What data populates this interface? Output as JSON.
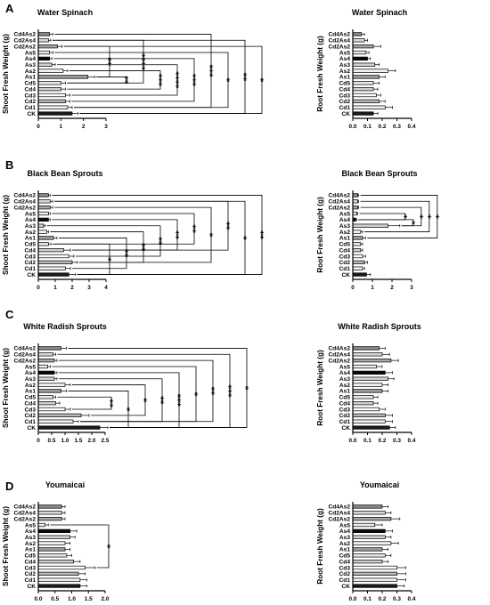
{
  "chart_data": [
    {
      "panel": "A",
      "side": "left",
      "type": "bar",
      "title": "Water Spinach",
      "ylabel": "Shoot Fresh Weight (g)",
      "categories": [
        "Cd4As2",
        "Cd2As4",
        "Cd2As2",
        "As5",
        "As4",
        "As3",
        "As2",
        "As1",
        "Cd5",
        "Cd4",
        "Cd3",
        "Cd2",
        "Cd1",
        "CK"
      ],
      "values": [
        0.5,
        0.45,
        0.85,
        0.5,
        0.5,
        0.6,
        1.1,
        2.2,
        1.0,
        1.0,
        1.2,
        1.2,
        1.3,
        1.5
      ],
      "errors": [
        0.15,
        0.1,
        0.2,
        0.15,
        0.1,
        0.15,
        0.2,
        0.3,
        0.2,
        0.2,
        0.2,
        0.2,
        0.2,
        0.25
      ],
      "xlim": [
        0,
        3
      ],
      "xticks": [
        "0",
        "1",
        "2",
        "3"
      ],
      "significance": [
        {
          "from": "Cd2As2",
          "to": "As1",
          "label": "**"
        },
        {
          "from": "As1",
          "to": "Cd5",
          "label": "**"
        },
        {
          "from": "Cd2As4",
          "to": "Cd5",
          "label": "****"
        },
        {
          "from": "As2",
          "to": "Cd4",
          "label": "***"
        },
        {
          "from": "As3",
          "to": "Cd3",
          "label": "****"
        },
        {
          "from": "As4",
          "to": "Cd2",
          "label": "***"
        },
        {
          "from": "Cd4As2",
          "to": "Cd1",
          "label": "***"
        },
        {
          "from": "As5",
          "to": "Cd1",
          "label": "*"
        },
        {
          "from": "Cd2As4",
          "to": "CK",
          "label": "**"
        },
        {
          "from": "Cd2As2",
          "to": "CK",
          "label": "*"
        }
      ]
    },
    {
      "panel": "A",
      "side": "right",
      "type": "bar",
      "title": "Water Spinach",
      "ylabel": "Root Fresh Weight (g)",
      "categories": [
        "Cd4As2",
        "Cd2As4",
        "Cd2As2",
        "As5",
        "As4",
        "As3",
        "As2",
        "As1",
        "Cd5",
        "Cd4",
        "Cd3",
        "Cd2",
        "Cd1",
        "CK"
      ],
      "values": [
        0.06,
        0.08,
        0.14,
        0.09,
        0.1,
        0.15,
        0.24,
        0.18,
        0.14,
        0.14,
        0.16,
        0.18,
        0.22,
        0.14
      ],
      "errors": [
        0.02,
        0.02,
        0.05,
        0.02,
        0.02,
        0.03,
        0.05,
        0.04,
        0.04,
        0.03,
        0.03,
        0.04,
        0.05,
        0.03
      ],
      "xlim": [
        0,
        0.4
      ],
      "xticks": [
        "0.0",
        "0.1",
        "0.2",
        "0.3",
        "0.4"
      ],
      "significance": []
    },
    {
      "panel": "B",
      "side": "left",
      "type": "bar",
      "title": "Black Bean Sprouts",
      "ylabel": "Shoot Fresh Weight (g)",
      "categories": [
        "Cd4As2",
        "Cd2As4",
        "Cd2As2",
        "As5",
        "As4",
        "As3",
        "As2",
        "As1",
        "Cd5",
        "Cd4",
        "Cd3",
        "Cd2",
        "Cd1",
        "CK"
      ],
      "values": [
        0.6,
        0.7,
        0.7,
        0.6,
        0.6,
        0.3,
        0.5,
        0.9,
        0.6,
        1.5,
        1.8,
        2.0,
        1.6,
        1.8
      ],
      "errors": [
        0.1,
        0.15,
        0.15,
        0.1,
        0.1,
        0.1,
        0.1,
        0.2,
        0.15,
        0.4,
        0.3,
        0.3,
        0.3,
        0.4
      ],
      "xlim": [
        0,
        4
      ],
      "xticks": [
        "0",
        "1",
        "2",
        "3",
        "4"
      ],
      "significance": [
        {
          "from": "Cd5",
          "to": "CK",
          "label": "*"
        },
        {
          "from": "As1",
          "to": "Cd1",
          "label": "**"
        },
        {
          "from": "As2",
          "to": "Cd2",
          "label": "**"
        },
        {
          "from": "As3",
          "to": "Cd3",
          "label": "**"
        },
        {
          "from": "As4",
          "to": "Cd4",
          "label": "**"
        },
        {
          "from": "As5",
          "to": "Cd5",
          "label": "**"
        },
        {
          "from": "Cd2As2",
          "to": "Cd2",
          "label": "*"
        },
        {
          "from": "Cd2As4",
          "to": "Cd4",
          "label": "**"
        },
        {
          "from": "Cd2As4",
          "to": "CK",
          "label": "*"
        },
        {
          "from": "Cd4As2",
          "to": "CK",
          "label": "**"
        }
      ]
    },
    {
      "panel": "B",
      "side": "right",
      "type": "bar",
      "title": "Black Bean Sprouts",
      "ylabel": "Root Fresh Weight (g)",
      "categories": [
        "Cd4As2",
        "Cd2As4",
        "Cd2As2",
        "As5",
        "As4",
        "As3",
        "As2",
        "As1",
        "Cd5",
        "Cd4",
        "Cd3",
        "Cd2",
        "Cd1",
        "CK"
      ],
      "values": [
        0.25,
        0.25,
        0.25,
        0.2,
        0.15,
        1.8,
        0.4,
        0.5,
        0.4,
        0.4,
        0.5,
        0.6,
        0.5,
        0.7
      ],
      "errors": [
        0.05,
        0.05,
        0.05,
        0.05,
        0.05,
        0.6,
        0.1,
        0.15,
        0.1,
        0.1,
        0.15,
        0.15,
        0.1,
        0.2
      ],
      "xlim": [
        0,
        3
      ],
      "xticks": [
        "0",
        "1",
        "2",
        "3"
      ],
      "significance": [
        {
          "from": "As5",
          "to": "As4",
          "label": "*"
        },
        {
          "from": "As4",
          "to": "As3",
          "label": "*"
        },
        {
          "from": "Cd2As2",
          "to": "As3",
          "label": "*"
        },
        {
          "from": "Cd2As4",
          "to": "As2",
          "label": "*"
        },
        {
          "from": "Cd4As2",
          "to": "As1",
          "label": "*"
        }
      ]
    },
    {
      "panel": "C",
      "side": "left",
      "type": "bar",
      "title": "White Radish Sprouts",
      "ylabel": "Shoot Fresh Weight (g)",
      "categories": [
        "Cd4As2",
        "Cd2As4",
        "Cd2As2",
        "As5",
        "As4",
        "As3",
        "As2",
        "As1",
        "Cd5",
        "Cd4",
        "Cd3",
        "Cd2",
        "Cd1",
        "CK"
      ],
      "values": [
        0.85,
        0.55,
        0.6,
        0.35,
        0.6,
        0.6,
        1.0,
        0.85,
        0.55,
        0.65,
        1.0,
        1.6,
        1.3,
        2.3
      ],
      "errors": [
        0.2,
        0.1,
        0.1,
        0.1,
        0.1,
        0.1,
        0.2,
        0.2,
        0.1,
        0.15,
        0.2,
        0.3,
        0.2,
        0.3
      ],
      "xlim": [
        0,
        2.5
      ],
      "xticks": [
        "0",
        "0.5",
        "1.0",
        "1.5",
        "2.0",
        "2.5"
      ],
      "significance": [
        {
          "from": "Cd5",
          "to": "Cd3",
          "label": "**"
        },
        {
          "from": "As1",
          "to": "CK",
          "label": "*"
        },
        {
          "from": "As2",
          "to": "Cd2",
          "label": "*"
        },
        {
          "from": "As3",
          "to": "Cd1",
          "label": "**"
        },
        {
          "from": "As4",
          "to": "CK",
          "label": "***"
        },
        {
          "from": "As5",
          "to": "Cd1",
          "label": "*"
        },
        {
          "from": "Cd2As2",
          "to": "Cd1",
          "label": "**"
        },
        {
          "from": "Cd2As4",
          "to": "CK",
          "label": "***"
        },
        {
          "from": "Cd4As2",
          "to": "CK",
          "label": "*"
        }
      ]
    },
    {
      "panel": "C",
      "side": "right",
      "type": "bar",
      "title": "White Radish Sprouts",
      "ylabel": "Root Fresh Weight (g)",
      "categories": [
        "Cd4As2",
        "Cd2As4",
        "Cd2As2",
        "As5",
        "As4",
        "As3",
        "As2",
        "As1",
        "Cd5",
        "Cd4",
        "Cd3",
        "Cd2",
        "Cd1",
        "CK"
      ],
      "values": [
        0.18,
        0.2,
        0.26,
        0.16,
        0.22,
        0.24,
        0.2,
        0.2,
        0.14,
        0.14,
        0.18,
        0.22,
        0.22,
        0.25
      ],
      "errors": [
        0.04,
        0.05,
        0.05,
        0.04,
        0.05,
        0.04,
        0.04,
        0.04,
        0.03,
        0.03,
        0.04,
        0.05,
        0.05,
        0.04
      ],
      "xlim": [
        0,
        0.4
      ],
      "xticks": [
        "0.0",
        "0.1",
        "0.2",
        "0.3",
        "0.4"
      ],
      "significance": []
    },
    {
      "panel": "D",
      "side": "left",
      "type": "bar",
      "title": "Youmaicai",
      "ylabel": "Shoot Fresh Weight (g)",
      "categories": [
        "Cd4As2",
        "Cd2As4",
        "Cd2As2",
        "As5",
        "As4",
        "As3",
        "As2",
        "As1",
        "Cd5",
        "Cd4",
        "Cd3",
        "Cd2",
        "Cd1",
        "CK"
      ],
      "values": [
        0.7,
        0.7,
        0.7,
        0.2,
        0.95,
        0.95,
        0.8,
        0.8,
        0.85,
        1.05,
        1.4,
        1.2,
        1.25,
        1.25
      ],
      "errors": [
        0.1,
        0.1,
        0.1,
        0.1,
        0.2,
        0.15,
        0.15,
        0.15,
        0.15,
        0.2,
        0.3,
        0.2,
        0.2,
        0.2
      ],
      "xlim": [
        0,
        2.0
      ],
      "xticks": [
        "0.0",
        "0.5",
        "1.0",
        "1.5",
        "2.0"
      ],
      "significance": [
        {
          "from": "As5",
          "to": "Cd3",
          "label": "*"
        }
      ]
    },
    {
      "panel": "D",
      "side": "right",
      "type": "bar",
      "title": "Youmaicai",
      "ylabel": "Root Fresh Weight (g)",
      "categories": [
        "Cd4As2",
        "Cd2As4",
        "Cd2As2",
        "As5",
        "As4",
        "As3",
        "As2",
        "As1",
        "Cd5",
        "Cd4",
        "Cd3",
        "Cd2",
        "Cd1",
        "CK"
      ],
      "values": [
        0.2,
        0.22,
        0.26,
        0.15,
        0.22,
        0.22,
        0.26,
        0.2,
        0.22,
        0.2,
        0.3,
        0.3,
        0.3,
        0.3
      ],
      "errors": [
        0.04,
        0.04,
        0.06,
        0.05,
        0.05,
        0.04,
        0.05,
        0.04,
        0.04,
        0.04,
        0.06,
        0.06,
        0.06,
        0.05
      ],
      "xlim": [
        0,
        0.4
      ],
      "xticks": [
        "0.0",
        "0.1",
        "0.2",
        "0.3",
        "0.4"
      ],
      "significance": []
    }
  ],
  "bar_colors": {
    "Cd4As2": "#888888",
    "Cd2As4": "#d8d8d8",
    "Cd2As2": "#a8a8a8",
    "As5": "#ededed",
    "As4": "#0a0a0a",
    "As3": "#d0d0d0",
    "As2": "#f2f2f2",
    "As1": "#9a9a9a",
    "Cd5": "#e8e8e8",
    "Cd4": "#cfcfcf",
    "Cd3": "#ffffff",
    "Cd2": "#b8b8b8",
    "Cd1": "#f0f0f0",
    "CK": "#1a1a1a"
  },
  "panel_letters": [
    "A",
    "B",
    "C",
    "D"
  ]
}
